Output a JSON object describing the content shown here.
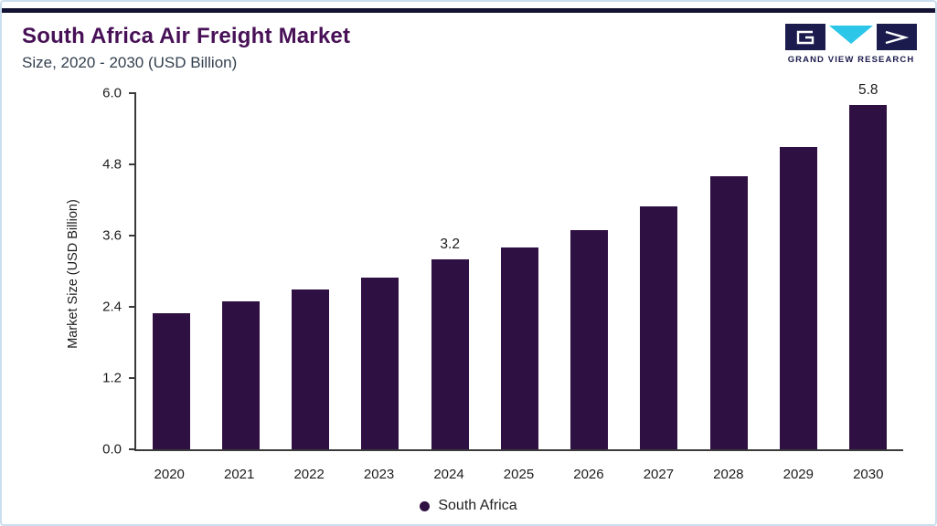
{
  "header": {
    "title": "South Africa Air Freight Market",
    "subtitle": "Size, 2020 - 2030 (USD Billion)",
    "logo_text": "GRAND VIEW RESEARCH"
  },
  "chart_data": {
    "type": "bar",
    "title": "South Africa Air Freight Market Size, 2020 - 2030 (USD Billion)",
    "categories": [
      "2020",
      "2021",
      "2022",
      "2023",
      "2024",
      "2025",
      "2026",
      "2027",
      "2028",
      "2029",
      "2030"
    ],
    "values": [
      2.3,
      2.5,
      2.7,
      2.9,
      3.2,
      3.4,
      3.7,
      4.1,
      4.6,
      5.1,
      5.8
    ],
    "value_labels": [
      "",
      "",
      "",
      "",
      "3.2",
      "",
      "",
      "",
      "",
      "",
      "5.8"
    ],
    "series_name": "South Africa",
    "xlabel": "",
    "ylabel": "Market Size (USD Billion)",
    "ylim": [
      0,
      6
    ],
    "yticks": [
      "0.0",
      "1.2",
      "2.4",
      "3.6",
      "4.8",
      "6.0"
    ],
    "grid": false,
    "legend": {
      "position": "bottom",
      "entries": [
        "South Africa"
      ]
    },
    "colors": {
      "bar": "#2f1043",
      "title": "#481157",
      "topbar": "#141233",
      "axis": "#3a3a3a",
      "logo_navy": "#1b1b4d",
      "logo_cyan": "#2bc6e8",
      "border": "#cadeef"
    }
  }
}
